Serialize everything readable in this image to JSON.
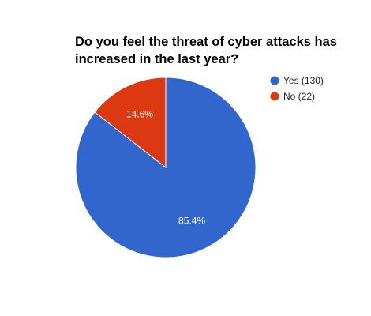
{
  "chart_data": {
    "type": "pie",
    "title_lines": [
      "Do you feel the threat of cyber attacks has",
      "increased in the last year?"
    ],
    "slices": [
      {
        "legend": "Yes (130)",
        "value": 130,
        "percent_label": "85.4%",
        "color": "#3366cc"
      },
      {
        "legend": "No (22)",
        "value": 22,
        "percent_label": "14.6%",
        "color": "#dc3912"
      }
    ],
    "legend_position": "right"
  }
}
